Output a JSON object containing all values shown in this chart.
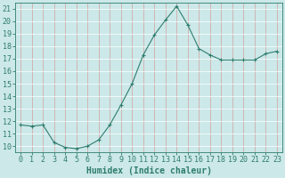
{
  "x": [
    0,
    1,
    2,
    3,
    4,
    5,
    6,
    7,
    8,
    9,
    10,
    11,
    12,
    13,
    14,
    15,
    16,
    17,
    18,
    19,
    20,
    21,
    22,
    23
  ],
  "y": [
    11.7,
    11.6,
    11.7,
    10.3,
    9.9,
    9.8,
    10.0,
    10.5,
    11.7,
    13.3,
    15.0,
    17.3,
    18.9,
    20.1,
    21.2,
    19.7,
    17.8,
    17.3,
    16.9,
    16.9,
    16.9,
    16.9,
    17.4,
    17.6
  ],
  "line_color": "#2e7d6e",
  "marker": "+",
  "marker_size": 3,
  "bg_color": "#cce8e8",
  "grid_color": "#b0d4d4",
  "xlim": [
    -0.5,
    23.5
  ],
  "ylim": [
    9.5,
    21.5
  ],
  "yticks": [
    10,
    11,
    12,
    13,
    14,
    15,
    16,
    17,
    18,
    19,
    20,
    21
  ],
  "xticks": [
    0,
    1,
    2,
    3,
    4,
    5,
    6,
    7,
    8,
    9,
    10,
    11,
    12,
    13,
    14,
    15,
    16,
    17,
    18,
    19,
    20,
    21,
    22,
    23
  ],
  "xtick_labels": [
    "0",
    "1",
    "2",
    "3",
    "4",
    "5",
    "6",
    "7",
    "8",
    "9",
    "10",
    "11",
    "12",
    "13",
    "14",
    "15",
    "16",
    "17",
    "18",
    "19",
    "20",
    "21",
    "22",
    "23"
  ],
  "xlabel": "Humidex (Indice chaleur)",
  "tick_color": "#2e7d6e",
  "font_color": "#2e7d6e",
  "xlabel_fontsize": 7,
  "tick_fontsize": 6,
  "linewidth": 0.8,
  "markeredgewidth": 0.8
}
